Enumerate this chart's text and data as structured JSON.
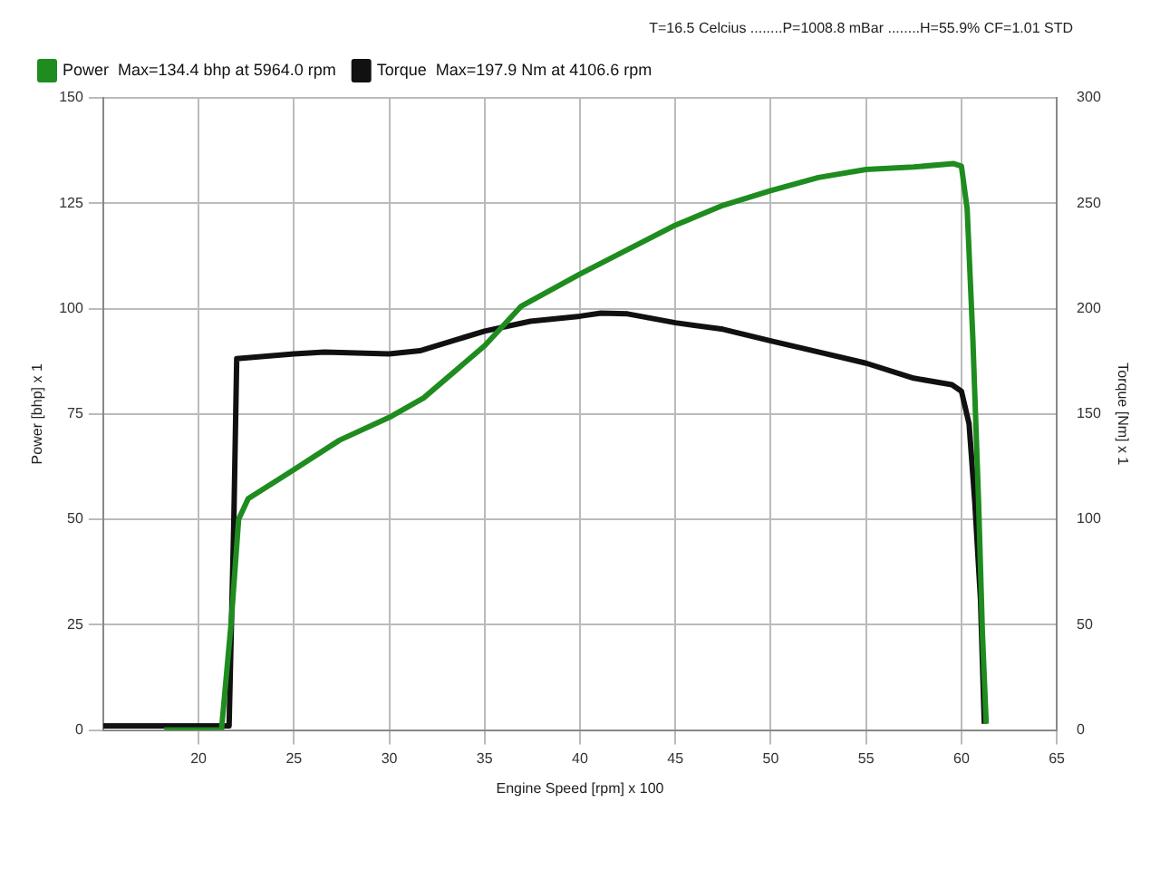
{
  "chart_data": {
    "type": "line",
    "xlabel": "Engine Speed [rpm] x 100",
    "ylabel": "Power [bhp] x 1",
    "y2label": "Torque [Nm] x 1",
    "annotations": [
      "T=16.5 Celcius ........P=1008.8 mBar ........H=55.9% CF=1.01 STD"
    ],
    "xlim": [
      15,
      65
    ],
    "xticks": [
      20,
      25,
      30,
      35,
      40,
      45,
      50,
      55,
      60,
      65
    ],
    "ylim": [
      0,
      150
    ],
    "yticks": [
      0,
      25,
      50,
      75,
      100,
      125,
      150
    ],
    "y2lim": [
      0,
      300
    ],
    "y2ticks": [
      0,
      50,
      100,
      150,
      200,
      250,
      300
    ],
    "grid": true,
    "legend": "top left",
    "marker": "none",
    "line_style": "solid",
    "series": [
      {
        "name": "Power  Max=134.4 bhp at 5964.0 rpm",
        "color": "#1e8c1e",
        "x": [
          18.2,
          21.2,
          21.7,
          22.1,
          22.6,
          25,
          27.4,
          30,
          31.8,
          35,
          36.9,
          40,
          42.5,
          45,
          47.5,
          50,
          52.5,
          55,
          57.5,
          59.6,
          60,
          60.3,
          60.6,
          60.9,
          61.1,
          61.3
        ],
        "values": [
          0,
          0,
          25,
          50,
          54.9,
          61.8,
          68.8,
          74.2,
          78.8,
          91.2,
          100.5,
          108.2,
          114,
          119.8,
          124.5,
          128,
          131.1,
          133,
          133.6,
          134.4,
          133.8,
          123.7,
          92.8,
          54,
          23,
          1.5
        ]
      },
      {
        "name": "Torque  Max=197.9 Nm at 4106.6 rpm",
        "color": "#111111",
        "axis": "y2",
        "x": [
          15,
          21.6,
          21.85,
          22,
          25,
          26.6,
          30,
          31.6,
          35,
          37.4,
          40,
          41.1,
          42.5,
          45,
          47.5,
          50,
          52.5,
          55,
          57.5,
          59.5,
          60,
          60.4,
          60.7,
          61,
          61.2
        ],
        "values": [
          2,
          2,
          100,
          176.3,
          178.5,
          179.4,
          178.5,
          180,
          189.3,
          194,
          196.4,
          197.9,
          197.5,
          193.3,
          190.2,
          184.7,
          179.4,
          174.1,
          167,
          163.9,
          160.8,
          145.4,
          108.3,
          61.9,
          3
        ]
      }
    ]
  }
}
